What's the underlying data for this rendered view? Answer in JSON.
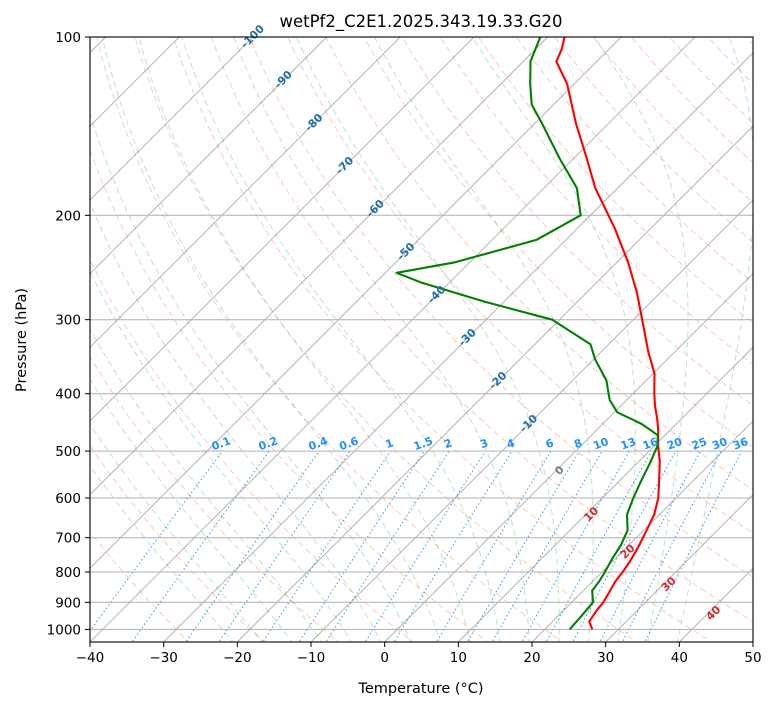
{
  "chart_data": {
    "type": "line",
    "title": "wetPf2_C2E1.2025.343.19.33.G20",
    "xlabel": "Temperature (°C)",
    "ylabel": "Pressure (hPa)",
    "xlim": [
      -40,
      50
    ],
    "ylim": [
      1050,
      100
    ],
    "x_ticks": [
      "−40",
      "−30",
      "−20",
      "−10",
      "0",
      "10",
      "20",
      "30",
      "40",
      "50"
    ],
    "x_tick_values": [
      -40,
      -30,
      -20,
      -10,
      0,
      10,
      20,
      30,
      40,
      50
    ],
    "y_ticks": [
      "100",
      "200",
      "300",
      "400",
      "500",
      "600",
      "700",
      "800",
      "900",
      "1000"
    ],
    "y_tick_values": [
      100,
      200,
      300,
      400,
      500,
      600,
      700,
      800,
      900,
      1000
    ],
    "skew": 45,
    "series": [
      {
        "name": "Temperature",
        "color": "#ff0000",
        "points": [
          [
            1000,
            26.5
          ],
          [
            970,
            25.0
          ],
          [
            930,
            24.5
          ],
          [
            900,
            24.3
          ],
          [
            870,
            23.8
          ],
          [
            830,
            23.1
          ],
          [
            800,
            22.8
          ],
          [
            770,
            22.4
          ],
          [
            720,
            21.4
          ],
          [
            680,
            20.4
          ],
          [
            640,
            19.3
          ],
          [
            600,
            17.6
          ],
          [
            560,
            15.3
          ],
          [
            520,
            12.8
          ],
          [
            490,
            10.5
          ],
          [
            460,
            8.3
          ],
          [
            440,
            6.6
          ],
          [
            420,
            4.7
          ],
          [
            400,
            2.9
          ],
          [
            370,
            0.2
          ],
          [
            340,
            -3.6
          ],
          [
            300,
            -8.8
          ],
          [
            270,
            -13.2
          ],
          [
            240,
            -18.5
          ],
          [
            210,
            -25.0
          ],
          [
            180,
            -33.0
          ],
          [
            160,
            -38.3
          ],
          [
            140,
            -44.4
          ],
          [
            120,
            -51.0
          ],
          [
            110,
            -55.5
          ],
          [
            105,
            -56.4
          ],
          [
            100,
            -57.7
          ]
        ]
      },
      {
        "name": "Dewpoint",
        "color": "#008000",
        "points": [
          [
            1000,
            23.4
          ],
          [
            950,
            23.2
          ],
          [
            900,
            22.9
          ],
          [
            860,
            21.2
          ],
          [
            830,
            20.9
          ],
          [
            800,
            20.4
          ],
          [
            760,
            19.6
          ],
          [
            720,
            18.9
          ],
          [
            680,
            17.8
          ],
          [
            640,
            15.6
          ],
          [
            600,
            14.2
          ],
          [
            560,
            12.9
          ],
          [
            520,
            11.6
          ],
          [
            490,
            10.4
          ],
          [
            470,
            9.0
          ],
          [
            450,
            5.3
          ],
          [
            430,
            0.4
          ],
          [
            410,
            -2.3
          ],
          [
            380,
            -5.4
          ],
          [
            350,
            -9.8
          ],
          [
            330,
            -12.5
          ],
          [
            300,
            -21.0
          ],
          [
            280,
            -32.5
          ],
          [
            260,
            -43.7
          ],
          [
            250,
            -48.5
          ],
          [
            240,
            -42.0
          ],
          [
            220,
            -34.0
          ],
          [
            200,
            -31.3
          ],
          [
            180,
            -35.5
          ],
          [
            160,
            -42.0
          ],
          [
            140,
            -49.0
          ],
          [
            130,
            -53.0
          ],
          [
            120,
            -56.0
          ],
          [
            110,
            -59.0
          ],
          [
            100,
            -61.0
          ]
        ]
      }
    ],
    "isotherm_labels": [
      "-100",
      "-90",
      "-80",
      "-70",
      "-60",
      "-50",
      "-40",
      "-30",
      "-20",
      "-10",
      "0",
      "10",
      "20",
      "30",
      "40"
    ],
    "mixing_ratio_labels": [
      "0.1",
      "0.2",
      "0.4",
      "0.6",
      "1",
      "1.5",
      "2",
      "3",
      "4",
      "6",
      "8",
      "10",
      "13",
      "16",
      "20",
      "25",
      "30",
      "36"
    ],
    "colors": {
      "temperature": "#ff0000",
      "dewpoint": "#008000",
      "isotherm_label_blue": "#1f6fa8",
      "isotherm_label_red": "#d62728",
      "isotherm_label_zero": "#7f7f7f",
      "mixing_ratio": "#1e90ff",
      "dry_adiabat": "#ffa07a",
      "moist_adiabat": "#3cb371",
      "grid": "#b0b0b0",
      "skewed_isotherm": "#808080"
    }
  }
}
